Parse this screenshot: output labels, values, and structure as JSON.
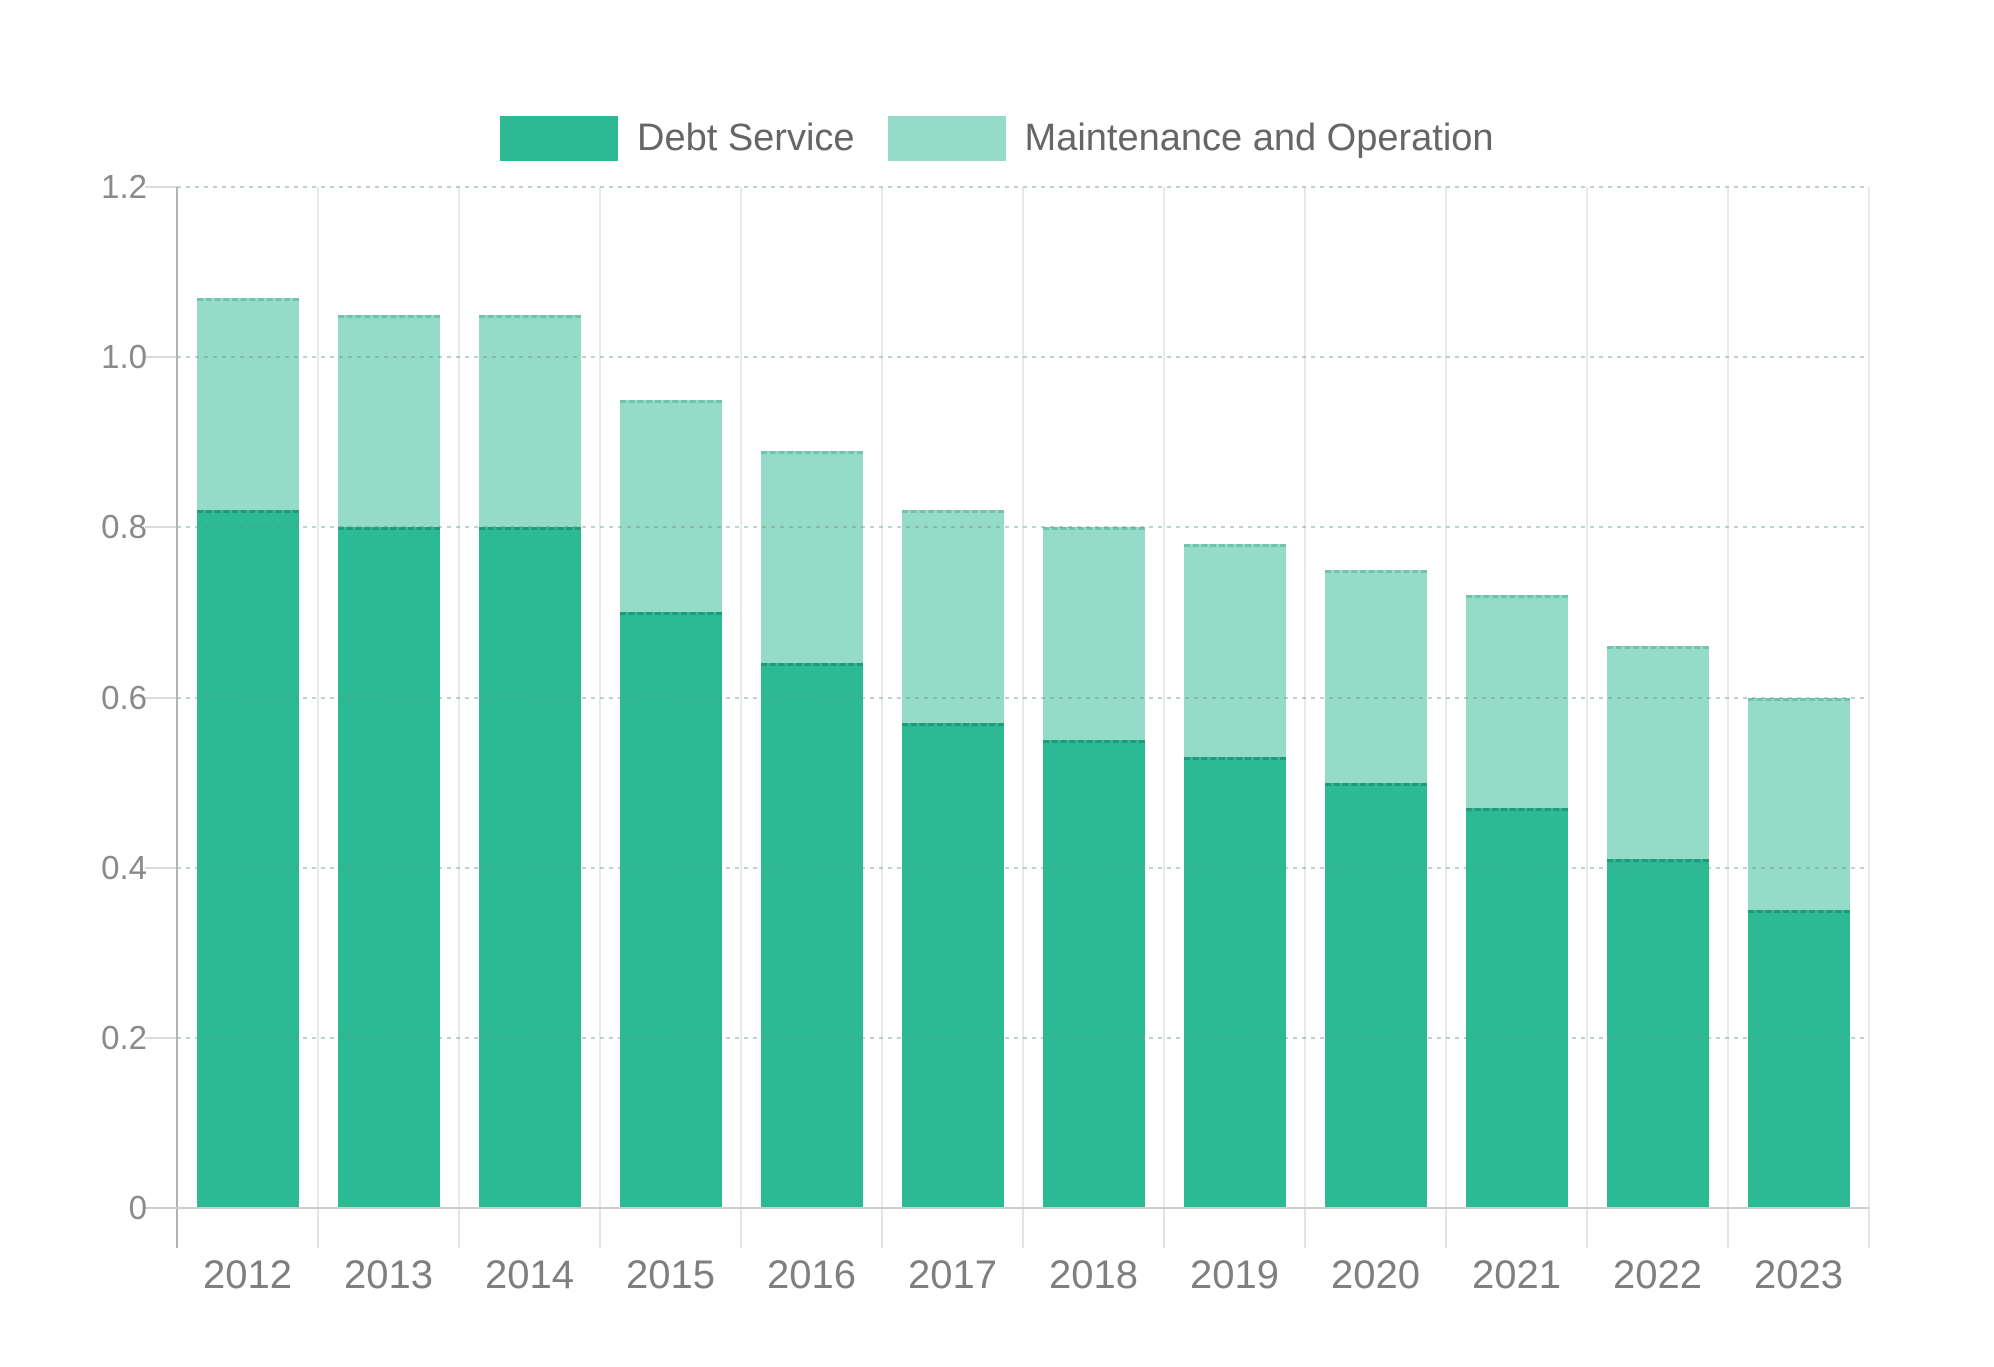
{
  "chart_data": {
    "type": "bar",
    "stacked": true,
    "title": "",
    "xlabel": "",
    "ylabel": "",
    "categories": [
      "2012",
      "2013",
      "2014",
      "2015",
      "2016",
      "2017",
      "2018",
      "2019",
      "2020",
      "2021",
      "2022",
      "2023"
    ],
    "series": [
      {
        "name": "Debt Service",
        "color": "#2cba94",
        "values": [
          0.82,
          0.8,
          0.8,
          0.7,
          0.64,
          0.57,
          0.55,
          0.53,
          0.5,
          0.47,
          0.41,
          0.35
        ]
      },
      {
        "name": "Maintenance and Operation",
        "color": "#94dcc7",
        "values": [
          0.25,
          0.25,
          0.25,
          0.25,
          0.25,
          0.25,
          0.25,
          0.25,
          0.25,
          0.25,
          0.25,
          0.25
        ]
      }
    ],
    "stack_totals": [
      1.07,
      1.05,
      1.05,
      0.95,
      0.89,
      0.82,
      0.8,
      0.78,
      0.75,
      0.72,
      0.66,
      0.6
    ],
    "ylim": [
      0,
      1.2
    ],
    "ytick_values": [
      0,
      0.2,
      0.4,
      0.6,
      0.8,
      1.0,
      1.2
    ],
    "ytick_labels": [
      "0",
      "0.2",
      "0.4",
      "0.6",
      "0.8",
      "1.0",
      "1.2"
    ],
    "grid": true,
    "legend_position": "top",
    "colors": {
      "grid_line": "#e8eae9",
      "axis_line": "#b0b3b2",
      "ytick_label_text": "#8a8a8a",
      "xtick_label_text": "#7f7f7f",
      "legend_text": "#666666"
    }
  }
}
